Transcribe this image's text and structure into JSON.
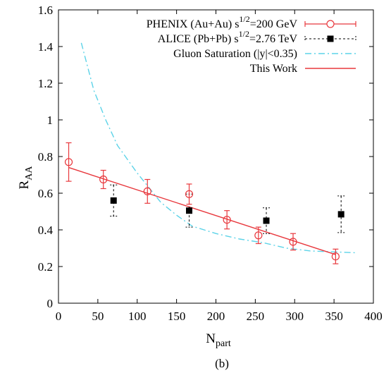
{
  "caption": "(b)",
  "chart_data": {
    "type": "scatter",
    "xlabel": "N",
    "xlabel_sub": "part",
    "ylabel": "R",
    "ylabel_sub": "AA",
    "xlim": [
      0,
      400
    ],
    "ylim": [
      0,
      1.6
    ],
    "xticks": [
      0,
      50,
      100,
      150,
      200,
      250,
      300,
      350,
      400
    ],
    "yticks": [
      0,
      0.2,
      0.4,
      0.6,
      0.8,
      1.0,
      1.2,
      1.4,
      1.6
    ],
    "xtick_labels": [
      "0",
      "50",
      "100",
      "150",
      "200",
      "250",
      "300",
      "350",
      "400"
    ],
    "ytick_labels": [
      "0",
      "0.2",
      "0.4",
      "0.6",
      "0.8",
      "1",
      "1.2",
      "1.4",
      "1.6"
    ],
    "legend_position": "top-right",
    "series": [
      {
        "name": "PHENIX (Au+Au) s",
        "name_sup": "1/2",
        "name_suffix": "=200 GeV",
        "kind": "points-open-circle",
        "color": "#e8383d",
        "x": [
          13,
          57,
          113,
          166,
          214,
          254,
          298,
          352
        ],
        "y": [
          0.77,
          0.675,
          0.61,
          0.595,
          0.455,
          0.37,
          0.335,
          0.255
        ],
        "err": [
          0.105,
          0.05,
          0.065,
          0.055,
          0.05,
          0.045,
          0.045,
          0.04
        ]
      },
      {
        "name": "ALICE (Pb+Pb) s",
        "name_sup": "1/2",
        "name_suffix": "=2.76 TeV",
        "kind": "points-filled-square",
        "color": "#000000",
        "x": [
          70,
          166,
          264,
          359
        ],
        "y": [
          0.56,
          0.505,
          0.45,
          0.485
        ],
        "err": [
          0.085,
          0.09,
          0.07,
          0.1
        ]
      },
      {
        "name": "Gluon Saturation (|y|<0.35)",
        "kind": "line-dashdot",
        "color": "#5cd3e8",
        "x": [
          29,
          45,
          60,
          75,
          90,
          100,
          115,
          130,
          150,
          170,
          200,
          230,
          260,
          290,
          320,
          350,
          378
        ],
        "y": [
          1.42,
          1.16,
          1.0,
          0.86,
          0.77,
          0.71,
          0.63,
          0.55,
          0.48,
          0.42,
          0.38,
          0.35,
          0.33,
          0.3,
          0.285,
          0.28,
          0.275
        ]
      },
      {
        "name": "This Work",
        "kind": "line-solid",
        "color": "#e8383d",
        "x": [
          13,
          352
        ],
        "y": [
          0.74,
          0.265
        ]
      }
    ]
  }
}
